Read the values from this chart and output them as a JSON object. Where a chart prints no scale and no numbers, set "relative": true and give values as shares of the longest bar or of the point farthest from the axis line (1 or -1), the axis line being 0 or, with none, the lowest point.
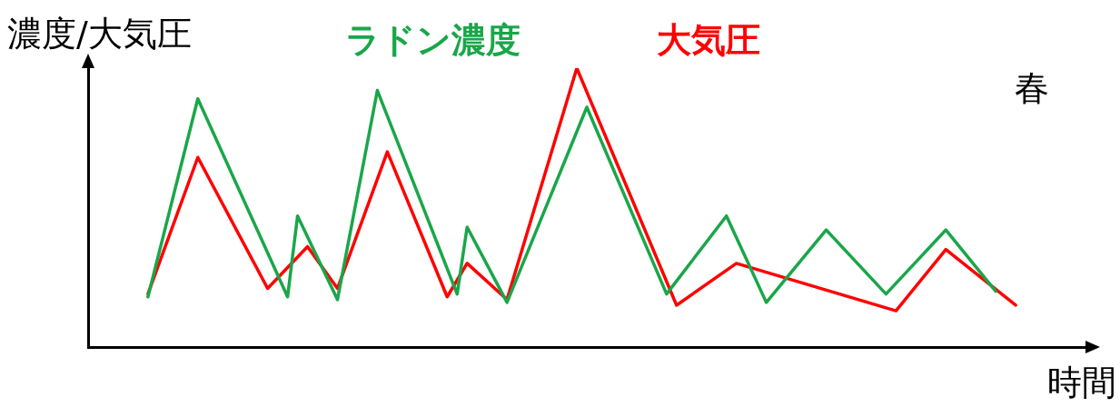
{
  "chart_data": {
    "type": "line",
    "relative": true,
    "ylabel": "濃度/大気圧",
    "xlabel": "時間",
    "annotations": [
      "春"
    ],
    "grid": false,
    "marker": "none",
    "line_style": "solid",
    "categories": [
      null,
      null,
      null,
      null,
      null,
      null,
      null,
      null,
      null,
      null,
      null,
      null,
      null,
      null,
      null,
      null,
      null,
      null,
      null,
      null,
      null,
      null,
      null,
      null,
      null,
      null,
      null,
      null,
      null,
      null,
      null,
      null,
      null,
      null,
      null,
      null,
      null,
      null,
      null,
      null,
      null,
      null,
      null,
      null,
      null,
      null,
      null,
      null,
      null,
      null,
      null,
      null,
      null,
      null,
      null,
      null,
      null,
      null,
      null,
      null,
      null,
      null,
      null,
      null,
      null,
      null,
      null,
      null,
      null,
      null,
      null,
      null,
      null,
      null,
      null,
      null,
      null,
      null,
      null,
      null,
      null,
      null,
      null,
      null,
      null,
      null,
      null,
      null,
      null,
      null,
      null,
      null,
      null,
      null,
      null,
      null,
      null,
      null,
      null,
      null,
      null
    ],
    "series": [
      {
        "name": "ラドン濃度",
        "color": "#1aa64a",
        "values": [
          null,
          null,
          null,
          null,
          null,
          null,
          0.18,
          null,
          null,
          null,
          null,
          0.89,
          null,
          null,
          null,
          null,
          null,
          null,
          null,
          null,
          0.18,
          0.47,
          null,
          null,
          null,
          0.17,
          null,
          null,
          null,
          0.92,
          null,
          null,
          null,
          null,
          null,
          null,
          null,
          0.19,
          0.43,
          null,
          null,
          null,
          0.16,
          null,
          null,
          null,
          null,
          null,
          null,
          null,
          0.86,
          null,
          null,
          null,
          null,
          null,
          null,
          null,
          0.19,
          null,
          null,
          null,
          null,
          null,
          0.47,
          null,
          null,
          null,
          0.16,
          null,
          null,
          null,
          null,
          null,
          0.42,
          null,
          null,
          null,
          null,
          null,
          0.19,
          null,
          null,
          null,
          null,
          null,
          0.42,
          null,
          null,
          null,
          null,
          0.2,
          null,
          null,
          null,
          null,
          null,
          null,
          null,
          null,
          null
        ]
      },
      {
        "name": "大気圧",
        "color": "#ff0000",
        "values": [
          null,
          null,
          null,
          null,
          null,
          null,
          0.19,
          null,
          null,
          null,
          null,
          0.68,
          null,
          null,
          null,
          null,
          null,
          null,
          0.21,
          null,
          null,
          null,
          0.36,
          null,
          null,
          0.21,
          null,
          null,
          null,
          null,
          0.7,
          null,
          null,
          null,
          null,
          null,
          0.18,
          null,
          0.3,
          null,
          null,
          null,
          0.17,
          null,
          null,
          null,
          null,
          null,
          null,
          1,
          null,
          null,
          null,
          null,
          null,
          null,
          null,
          null,
          null,
          0.15,
          null,
          null,
          null,
          null,
          null,
          0.3,
          null,
          null,
          null,
          null,
          null,
          null,
          null,
          null,
          null,
          null,
          null,
          null,
          null,
          null,
          null,
          0.13,
          null,
          null,
          null,
          null,
          0.35,
          null,
          null,
          null,
          null,
          null,
          null,
          0.15,
          null,
          null,
          null,
          null,
          null,
          null,
          null
        ]
      }
    ]
  }
}
